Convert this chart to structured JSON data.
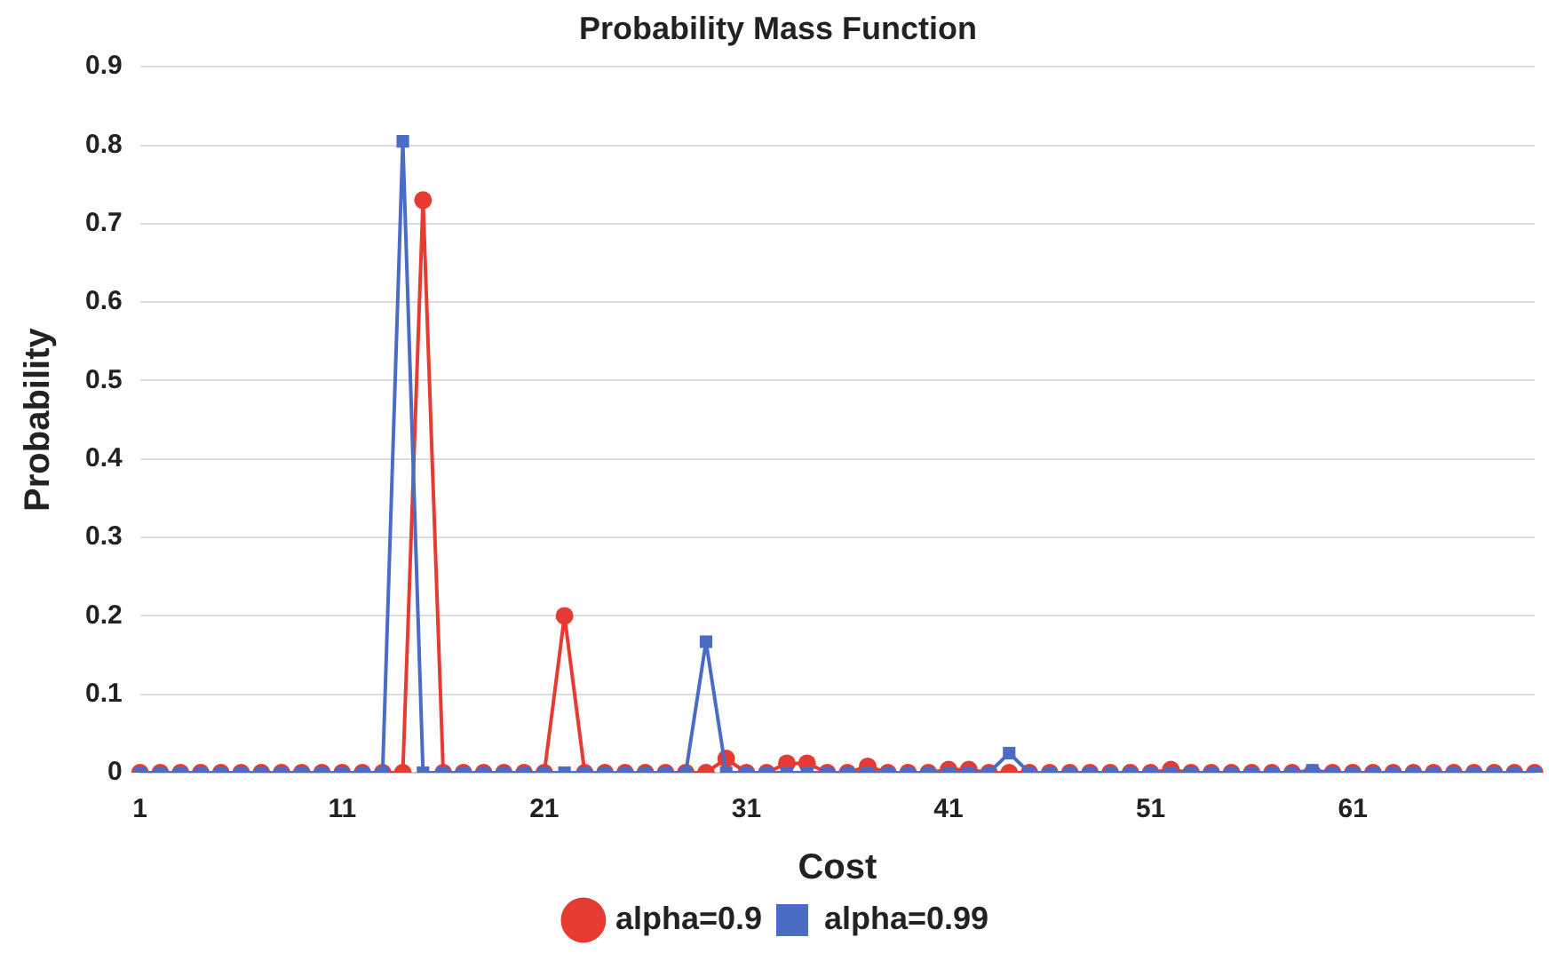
{
  "chart_data": {
    "type": "line",
    "title": "Probability Mass Function",
    "xlabel": "Cost",
    "ylabel": "Probability",
    "categories": [
      "1",
      null,
      null,
      null,
      null,
      null,
      null,
      null,
      null,
      null,
      "11",
      null,
      null,
      null,
      null,
      null,
      null,
      null,
      null,
      null,
      "21",
      null,
      null,
      null,
      null,
      null,
      null,
      null,
      null,
      null,
      "31",
      null,
      null,
      null,
      null,
      null,
      null,
      null,
      null,
      null,
      "41",
      null,
      null,
      null,
      null,
      null,
      null,
      null,
      null,
      null,
      "51",
      null,
      null,
      null,
      null,
      null,
      null,
      null,
      null,
      null,
      "61",
      null,
      null,
      null,
      null,
      null,
      null,
      null,
      null,
      null
    ],
    "series": [
      {
        "name": "alpha=0.9",
        "color": "#e53b33",
        "marker": "circle",
        "values": [
          0,
          0,
          0,
          0,
          0,
          0,
          0,
          0,
          0,
          0,
          0,
          0,
          0,
          0,
          0.73,
          0,
          0,
          0,
          0,
          0,
          0,
          0.2,
          0,
          0,
          0,
          0,
          0,
          0,
          0,
          0.018,
          0,
          0,
          0.012,
          0.012,
          0,
          0,
          0.008,
          0,
          0,
          0,
          0.004,
          0.004,
          0,
          0,
          0,
          0,
          0,
          0,
          0,
          0,
          0,
          0.004,
          0,
          0,
          0,
          0,
          0,
          0,
          0,
          0,
          0,
          0,
          0,
          0,
          0,
          0,
          0,
          0,
          0,
          0
        ]
      },
      {
        "name": "alpha=0.99",
        "color": "#4a6cc4",
        "marker": "square",
        "values": [
          0,
          0,
          0,
          0,
          0,
          0,
          0,
          0,
          0,
          0,
          0,
          0,
          0,
          0.805,
          0,
          0,
          0,
          0,
          0,
          0,
          0,
          0,
          0,
          0,
          0,
          0,
          0,
          0,
          0.167,
          0,
          0,
          0,
          0,
          0,
          0,
          0,
          0,
          0,
          0,
          0,
          0,
          0,
          0,
          0.025,
          0,
          0,
          0,
          0,
          0,
          0,
          0,
          0,
          0,
          0,
          0,
          0,
          0,
          0,
          0.003,
          0,
          0,
          0,
          0,
          0,
          0,
          0,
          0,
          0,
          0,
          0
        ]
      }
    ],
    "ylim": [
      0,
      0.9
    ],
    "yticks": [
      0,
      0.1,
      0.2,
      0.3,
      0.4,
      0.5,
      0.6,
      0.7,
      0.8,
      0.9
    ],
    "grid": "y",
    "legend": "bottom"
  }
}
